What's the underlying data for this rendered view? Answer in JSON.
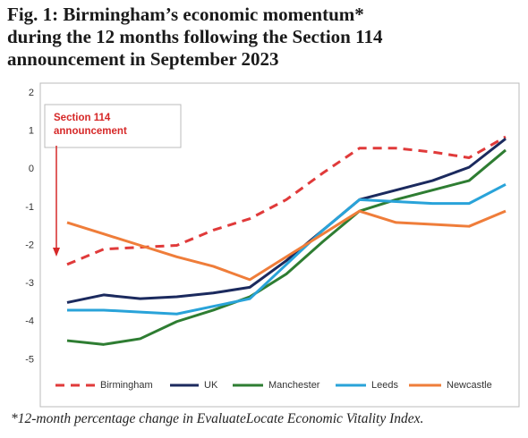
{
  "chart_data": {
    "type": "line",
    "title": [
      "Fig. 1: Birmingham’s economic momentum*",
      "during the 12 months following the Section 114",
      "announcement in September 2023"
    ],
    "annotation": [
      "Section 114",
      "announcement"
    ],
    "footnote": "*12-month percentage change in EvaluateLocate Economic Vitality Index.",
    "categories": [
      null,
      null,
      null,
      null,
      null,
      null,
      null,
      null,
      null,
      null,
      null,
      null,
      null
    ],
    "series": [
      {
        "name": "Birmingham",
        "color": "#e03a3a",
        "dashed": true,
        "values": [
          -2.5,
          -2.1,
          -2.05,
          -2.0,
          -1.6,
          -1.3,
          -0.8,
          -0.1,
          0.55,
          0.55,
          0.45,
          0.3,
          0.85
        ]
      },
      {
        "name": "UK",
        "color": "#1b2a5e",
        "values": [
          -3.5,
          -3.3,
          -3.4,
          -3.35,
          -3.25,
          -3.1,
          -2.4,
          -1.6,
          -0.8,
          -0.55,
          -0.3,
          0.05,
          0.8
        ]
      },
      {
        "name": "Manchester",
        "color": "#2e7d32",
        "values": [
          -4.5,
          -4.6,
          -4.45,
          -4.0,
          -3.7,
          -3.35,
          -2.75,
          -1.9,
          -1.1,
          -0.8,
          -0.55,
          -0.3,
          0.5
        ]
      },
      {
        "name": "Leeds",
        "color": "#29a3d9",
        "values": [
          -3.7,
          -3.7,
          -3.75,
          -3.8,
          -3.6,
          -3.4,
          -2.5,
          -1.6,
          -0.8,
          -0.85,
          -0.9,
          -0.9,
          -0.4
        ]
      },
      {
        "name": "Newcastle",
        "color": "#ef7d3a",
        "values": [
          -1.4,
          -1.7,
          -2.0,
          -2.3,
          -2.55,
          -2.9,
          -2.3,
          -1.7,
          -1.1,
          -1.4,
          -1.45,
          -1.5,
          -1.1
        ]
      }
    ],
    "ylim": [
      -6,
      2
    ],
    "yticks": [
      2,
      1,
      0,
      -1,
      -2,
      -3,
      -4,
      -5
    ],
    "grid": false
  }
}
